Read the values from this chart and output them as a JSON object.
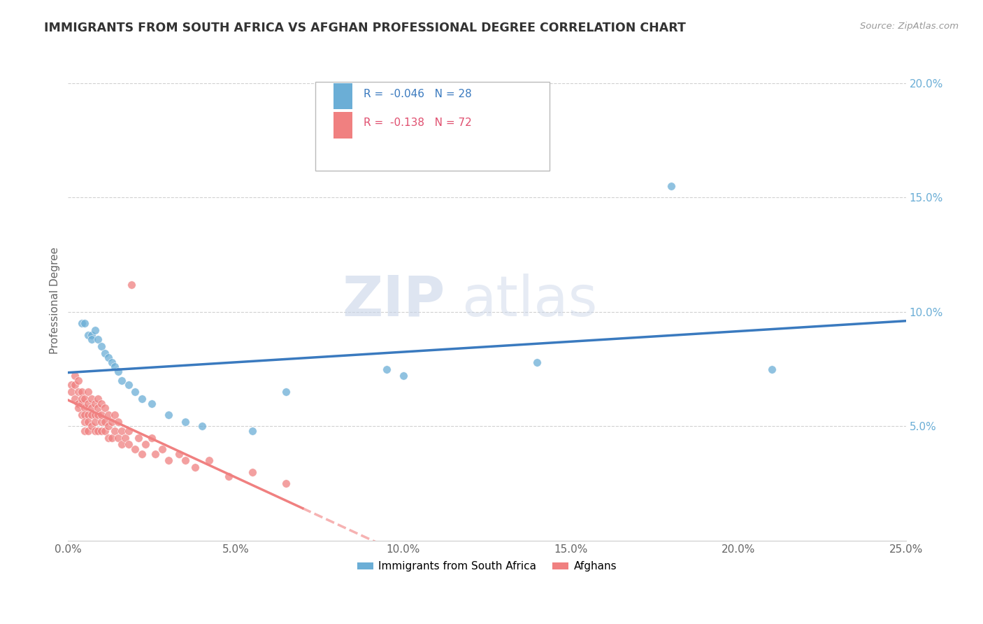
{
  "title": "IMMIGRANTS FROM SOUTH AFRICA VS AFGHAN PROFESSIONAL DEGREE CORRELATION CHART",
  "source_text": "Source: ZipAtlas.com",
  "ylabel": "Professional Degree",
  "xlim": [
    0.0,
    0.25
  ],
  "ylim": [
    0.0,
    0.21
  ],
  "xtick_labels": [
    "0.0%",
    "5.0%",
    "10.0%",
    "15.0%",
    "20.0%",
    "25.0%"
  ],
  "xtick_values": [
    0.0,
    0.05,
    0.1,
    0.15,
    0.2,
    0.25
  ],
  "ytick_labels": [
    "5.0%",
    "10.0%",
    "15.0%",
    "20.0%"
  ],
  "ytick_values": [
    0.05,
    0.1,
    0.15,
    0.2
  ],
  "south_africa_color": "#6baed6",
  "afghan_color": "#f08080",
  "south_africa_R": -0.046,
  "south_africa_N": 28,
  "afghan_R": -0.138,
  "afghan_N": 72,
  "watermark_zip": "ZIP",
  "watermark_atlas": "atlas",
  "legend_label_1": "Immigrants from South Africa",
  "legend_label_2": "Afghans",
  "south_africa_x": [
    0.004,
    0.005,
    0.006,
    0.007,
    0.007,
    0.008,
    0.009,
    0.01,
    0.011,
    0.012,
    0.013,
    0.014,
    0.015,
    0.016,
    0.018,
    0.02,
    0.022,
    0.025,
    0.03,
    0.035,
    0.04,
    0.055,
    0.065,
    0.095,
    0.1,
    0.14,
    0.18,
    0.21
  ],
  "south_africa_y": [
    0.095,
    0.095,
    0.09,
    0.09,
    0.088,
    0.092,
    0.088,
    0.085,
    0.082,
    0.08,
    0.078,
    0.076,
    0.074,
    0.07,
    0.068,
    0.065,
    0.062,
    0.06,
    0.055,
    0.052,
    0.05,
    0.048,
    0.065,
    0.075,
    0.072,
    0.078,
    0.155,
    0.075
  ],
  "afghan_x": [
    0.001,
    0.001,
    0.002,
    0.002,
    0.002,
    0.003,
    0.003,
    0.003,
    0.003,
    0.004,
    0.004,
    0.004,
    0.004,
    0.005,
    0.005,
    0.005,
    0.005,
    0.005,
    0.006,
    0.006,
    0.006,
    0.006,
    0.006,
    0.007,
    0.007,
    0.007,
    0.007,
    0.008,
    0.008,
    0.008,
    0.008,
    0.009,
    0.009,
    0.009,
    0.009,
    0.01,
    0.01,
    0.01,
    0.01,
    0.011,
    0.011,
    0.011,
    0.012,
    0.012,
    0.012,
    0.013,
    0.013,
    0.014,
    0.014,
    0.015,
    0.015,
    0.016,
    0.016,
    0.017,
    0.018,
    0.018,
    0.019,
    0.02,
    0.021,
    0.022,
    0.023,
    0.025,
    0.026,
    0.028,
    0.03,
    0.033,
    0.035,
    0.038,
    0.042,
    0.048,
    0.055,
    0.065
  ],
  "afghan_y": [
    0.068,
    0.065,
    0.072,
    0.068,
    0.062,
    0.065,
    0.06,
    0.07,
    0.058,
    0.065,
    0.06,
    0.055,
    0.062,
    0.058,
    0.055,
    0.062,
    0.048,
    0.052,
    0.055,
    0.06,
    0.048,
    0.065,
    0.052,
    0.058,
    0.055,
    0.05,
    0.062,
    0.055,
    0.048,
    0.06,
    0.052,
    0.055,
    0.048,
    0.062,
    0.058,
    0.052,
    0.048,
    0.055,
    0.06,
    0.048,
    0.058,
    0.052,
    0.045,
    0.055,
    0.05,
    0.052,
    0.045,
    0.048,
    0.055,
    0.045,
    0.052,
    0.042,
    0.048,
    0.045,
    0.048,
    0.042,
    0.112,
    0.04,
    0.045,
    0.038,
    0.042,
    0.045,
    0.038,
    0.04,
    0.035,
    0.038,
    0.035,
    0.032,
    0.035,
    0.028,
    0.03,
    0.025
  ]
}
